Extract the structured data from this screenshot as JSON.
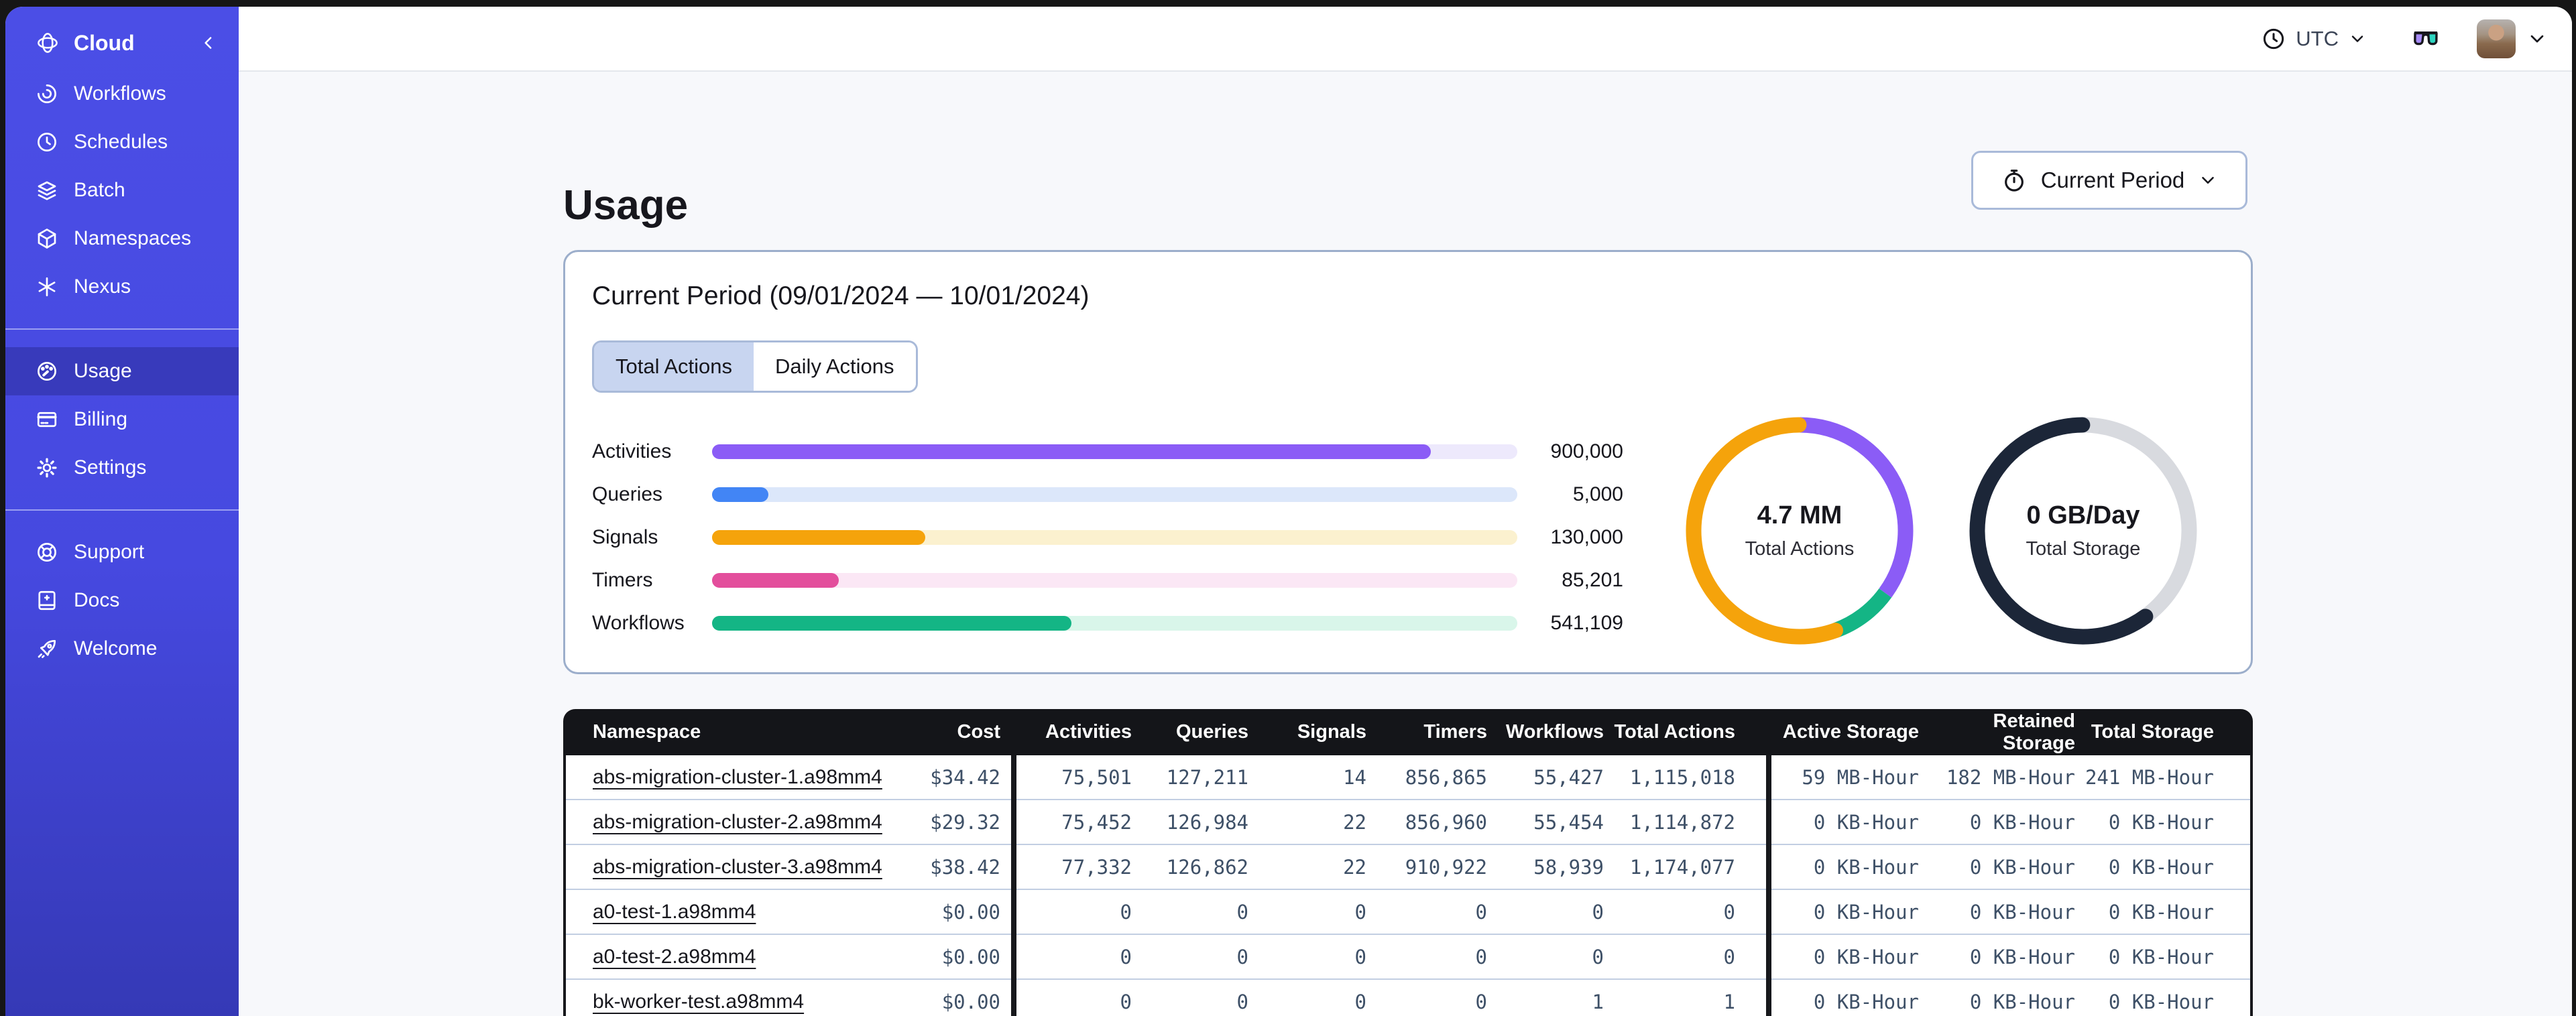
{
  "colors": {
    "sidebar": "#4649E0",
    "accent_purple": "#8B5CF6",
    "accent_blue": "#4285F5",
    "accent_orange": "#F5A30B",
    "accent_pink": "#E34E9C",
    "accent_green": "#14B585",
    "donut_navy": "#1C2638",
    "donut_gray": "#D8DADF",
    "table_header_bg": "#141519"
  },
  "sidebar": {
    "brand": {
      "label": "Cloud",
      "icon": "temporal-logo"
    },
    "groups": [
      {
        "items": [
          {
            "label": "Workflows",
            "icon": "workflows"
          },
          {
            "label": "Schedules",
            "icon": "schedules"
          },
          {
            "label": "Batch",
            "icon": "batch"
          },
          {
            "label": "Namespaces",
            "icon": "namespaces"
          },
          {
            "label": "Nexus",
            "icon": "nexus"
          }
        ]
      },
      {
        "items": [
          {
            "label": "Usage",
            "icon": "usage",
            "active": true
          },
          {
            "label": "Billing",
            "icon": "billing"
          },
          {
            "label": "Settings",
            "icon": "settings"
          }
        ]
      },
      {
        "items": [
          {
            "label": "Support",
            "icon": "support"
          },
          {
            "label": "Docs",
            "icon": "docs"
          },
          {
            "label": "Welcome",
            "icon": "welcome"
          }
        ]
      }
    ]
  },
  "topbar": {
    "timezone": "UTC"
  },
  "page": {
    "title": "Usage"
  },
  "period_selector": {
    "label": "Current Period"
  },
  "usage_card": {
    "heading": "Current Period (09/01/2024 — 10/01/2024)",
    "tabs": [
      {
        "label": "Total Actions",
        "selected": true
      },
      {
        "label": "Daily Actions",
        "selected": false
      }
    ]
  },
  "chart_data": [
    {
      "type": "bar",
      "title": "Current period usage by metric",
      "categories": [
        "Activities",
        "Queries",
        "Signals",
        "Timers",
        "Workflows"
      ],
      "values": [
        900000,
        5000,
        130000,
        85201,
        541109
      ],
      "value_labels": [
        "900,000",
        "5,000",
        "130,000",
        "85,201",
        "541,109"
      ],
      "fill_fractions": [
        0.893,
        0.07,
        0.265,
        0.157,
        0.446
      ],
      "colors": [
        "#8B5CF6",
        "#4285F5",
        "#F5A30B",
        "#E34E9C",
        "#14B585"
      ],
      "track_colors": [
        "#EDE9FC",
        "#DCE7FA",
        "#FBF1CF",
        "#FBE7F5",
        "#D9F6EA"
      ],
      "legend_position": "none",
      "grid": false
    },
    {
      "type": "donut",
      "center_value": "4.7 MM",
      "center_label": "Total Actions",
      "segments": [
        {
          "name": "activities",
          "color": "#8B5CF6",
          "fraction": 0.35
        },
        {
          "name": "workflows",
          "color": "#14B585",
          "fraction": 0.095
        },
        {
          "name": "other",
          "color": "#F5A30B",
          "fraction": 0.555,
          "cap": "round"
        }
      ]
    },
    {
      "type": "donut",
      "center_value": "0 GB/Day",
      "center_label": "Total Storage",
      "segments": [
        {
          "name": "retained",
          "color": "#D8DADF",
          "fraction": 0.4
        },
        {
          "name": "active",
          "color": "#1C2638",
          "fraction": 0.6,
          "cap": "round"
        }
      ]
    }
  ],
  "table": {
    "columns": [
      {
        "label": "Namespace",
        "align": "left"
      },
      {
        "label": "Cost",
        "align": "right"
      },
      {
        "label": "Activities",
        "align": "right"
      },
      {
        "label": "Queries",
        "align": "right"
      },
      {
        "label": "Signals",
        "align": "right"
      },
      {
        "label": "Timers",
        "align": "right"
      },
      {
        "label": "Workflows",
        "align": "right"
      },
      {
        "label": "Total Actions",
        "align": "right"
      },
      {
        "label": "Active Storage",
        "align": "right"
      },
      {
        "label": "Retained Storage",
        "align": "right"
      },
      {
        "label": "Total Storage",
        "align": "right"
      }
    ],
    "rows": [
      [
        "abs-migration-cluster-1.a98mm4",
        "$34.42",
        "75,501",
        "127,211",
        "14",
        "856,865",
        "55,427",
        "1,115,018",
        "59 MB-Hour",
        "182 MB-Hour",
        "241 MB-Hour"
      ],
      [
        "abs-migration-cluster-2.a98mm4",
        "$29.32",
        "75,452",
        "126,984",
        "22",
        "856,960",
        "55,454",
        "1,114,872",
        "0 KB-Hour",
        "0 KB-Hour",
        "0 KB-Hour"
      ],
      [
        "abs-migration-cluster-3.a98mm4",
        "$38.42",
        "77,332",
        "126,862",
        "22",
        "910,922",
        "58,939",
        "1,174,077",
        "0 KB-Hour",
        "0 KB-Hour",
        "0 KB-Hour"
      ],
      [
        "a0-test-1.a98mm4",
        "$0.00",
        "0",
        "0",
        "0",
        "0",
        "0",
        "0",
        "0 KB-Hour",
        "0 KB-Hour",
        "0 KB-Hour"
      ],
      [
        "a0-test-2.a98mm4",
        "$0.00",
        "0",
        "0",
        "0",
        "0",
        "0",
        "0",
        "0 KB-Hour",
        "0 KB-Hour",
        "0 KB-Hour"
      ],
      [
        "bk-worker-test.a98mm4",
        "$0.00",
        "0",
        "0",
        "0",
        "0",
        "1",
        "1",
        "0 KB-Hour",
        "0 KB-Hour",
        "0 KB-Hour"
      ]
    ]
  }
}
